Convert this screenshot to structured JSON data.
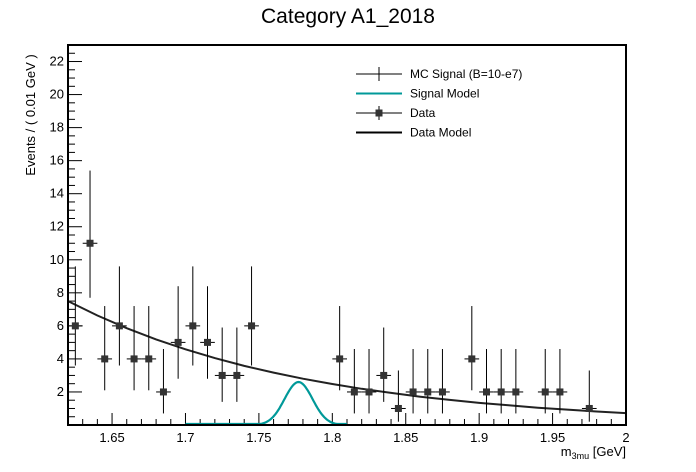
{
  "chart_data": {
    "type": "scatter",
    "title": "Category A1_2018",
    "xlabel_main": "m",
    "xlabel_sub": "3mu",
    "xlabel_unit": " [GeV]",
    "ylabel": "Events / ( 0.01 GeV )",
    "xlim": [
      1.62,
      2.0
    ],
    "ylim": [
      0,
      23
    ],
    "xticks": [
      1.65,
      1.7,
      1.75,
      1.8,
      1.85,
      1.9,
      1.95,
      2.0
    ],
    "xtick_labels": [
      "1.65",
      "1.7",
      "1.75",
      "1.8",
      "1.85",
      "1.9",
      "1.95",
      "2"
    ],
    "yticks": [
      2,
      4,
      6,
      8,
      10,
      12,
      14,
      16,
      18,
      20,
      22
    ],
    "ytick_labels": [
      "2",
      "4",
      "6",
      "8",
      "10",
      "12",
      "14",
      "16",
      "18",
      "20",
      "22"
    ],
    "grid": false,
    "legend_position": "top-right",
    "legend": [
      {
        "label": "MC Signal (B=10-e7)",
        "style": "errorbar",
        "color": "#000000"
      },
      {
        "label": "Signal Model",
        "style": "line",
        "color": "#009999"
      },
      {
        "label": "Data",
        "style": "marker",
        "color": "#000000"
      },
      {
        "label": "Data Model",
        "style": "line",
        "color": "#000000"
      }
    ],
    "series": [
      {
        "name": "Data",
        "bin_half_width": 0.005,
        "x": [
          1.625,
          1.635,
          1.645,
          1.655,
          1.665,
          1.675,
          1.685,
          1.695,
          1.705,
          1.715,
          1.725,
          1.735,
          1.745,
          1.805,
          1.815,
          1.825,
          1.835,
          1.845,
          1.855,
          1.865,
          1.875,
          1.895,
          1.905,
          1.915,
          1.925,
          1.945,
          1.955,
          1.975
        ],
        "y": [
          6,
          11,
          4,
          6,
          4,
          4,
          2,
          5,
          6,
          5,
          3,
          3,
          6,
          4,
          2,
          2,
          3,
          1,
          2,
          2,
          2,
          4,
          2,
          2,
          2,
          2,
          2,
          1
        ],
        "err_low": [
          2.4,
          3.3,
          1.9,
          2.4,
          1.9,
          1.9,
          1.3,
          2.2,
          2.4,
          2.2,
          1.6,
          1.6,
          2.4,
          1.9,
          1.3,
          1.3,
          1.6,
          0.8,
          1.3,
          1.3,
          1.3,
          1.9,
          1.3,
          1.3,
          1.3,
          1.3,
          1.3,
          0.8
        ],
        "err_high": [
          3.6,
          4.4,
          3.2,
          3.6,
          3.2,
          3.2,
          2.6,
          3.4,
          3.6,
          3.4,
          2.9,
          2.9,
          3.6,
          3.2,
          2.6,
          2.6,
          2.9,
          2.3,
          2.6,
          2.6,
          2.6,
          3.2,
          2.6,
          2.6,
          2.6,
          2.6,
          2.6,
          2.3
        ],
        "color": "#333333"
      },
      {
        "name": "Data Model",
        "x": [
          1.62,
          1.64,
          1.66,
          1.68,
          1.7,
          1.72,
          1.74,
          1.76,
          1.78,
          1.8,
          1.82,
          1.84,
          1.86,
          1.88,
          1.9,
          1.92,
          1.94,
          1.96,
          1.98,
          2.0
        ],
        "y": [
          7.5,
          6.63,
          5.86,
          5.18,
          4.58,
          4.05,
          3.58,
          3.17,
          2.8,
          2.48,
          2.19,
          1.94,
          1.71,
          1.52,
          1.34,
          1.19,
          1.05,
          0.93,
          0.82,
          0.72
        ],
        "color": "#222222"
      },
      {
        "name": "Signal Model",
        "mean": 1.777,
        "sigma": 0.0095,
        "amplitude": 2.6,
        "range": [
          1.7,
          1.81
        ],
        "color": "#009999"
      }
    ]
  }
}
